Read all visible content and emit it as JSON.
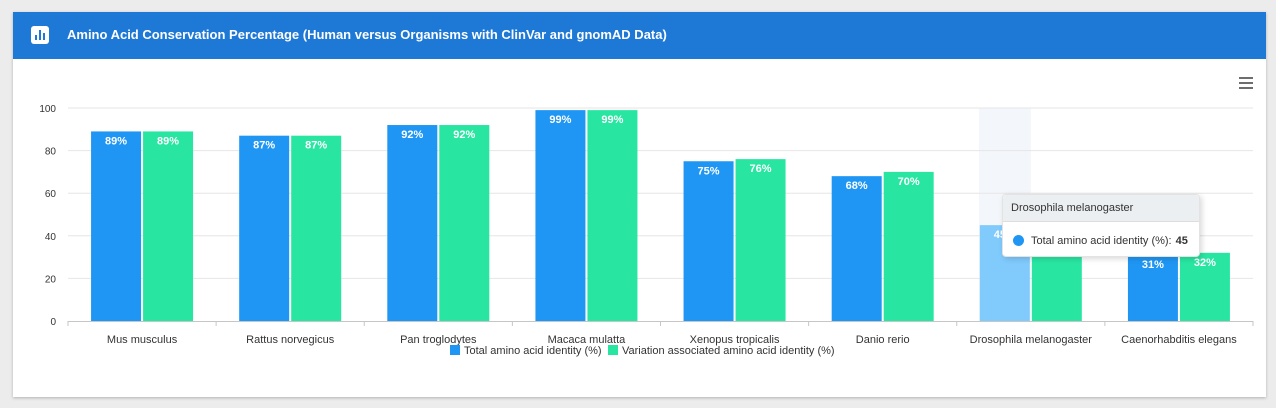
{
  "header": {
    "title": "Amino Acid Conservation Percentage (Human versus Organisms with ClinVar and gnomAD Data)",
    "icon": "bar-chart-icon"
  },
  "toolbar": {
    "menu_icon": "hamburger-menu-icon"
  },
  "colors": {
    "header_bg": "#1e79d6",
    "series_total": "#1f96f3",
    "series_variation": "#28e6a2",
    "highlight_total": "#80cafc"
  },
  "chart_data": {
    "type": "bar",
    "title": "Amino Acid Conservation Percentage (Human versus Organisms with ClinVar and gnomAD Data)",
    "categories": [
      "Mus musculus",
      "Rattus norvegicus",
      "Pan troglodytes",
      "Macaca mulatta",
      "Xenopus tropicalis",
      "Danio rerio",
      "Drosophila melanogaster",
      "Caenorhabditis elegans"
    ],
    "series": [
      {
        "name": "Total amino acid identity (%)",
        "values": [
          89,
          87,
          92,
          99,
          75,
          68,
          45,
          31
        ]
      },
      {
        "name": "Variation associated amino acid identity (%)",
        "values": [
          89,
          87,
          92,
          99,
          76,
          70,
          42,
          32
        ]
      }
    ],
    "ylim": [
      0,
      100
    ],
    "yticks": [
      0,
      20,
      40,
      60,
      80,
      100
    ],
    "data_label_suffix": "%",
    "grid": true,
    "legend_position": "bottom-center",
    "hovered_category": "Drosophila melanogaster"
  },
  "tooltip": {
    "title": "Drosophila melanogaster",
    "series_label": "Total amino acid identity (%):",
    "value": "45"
  }
}
